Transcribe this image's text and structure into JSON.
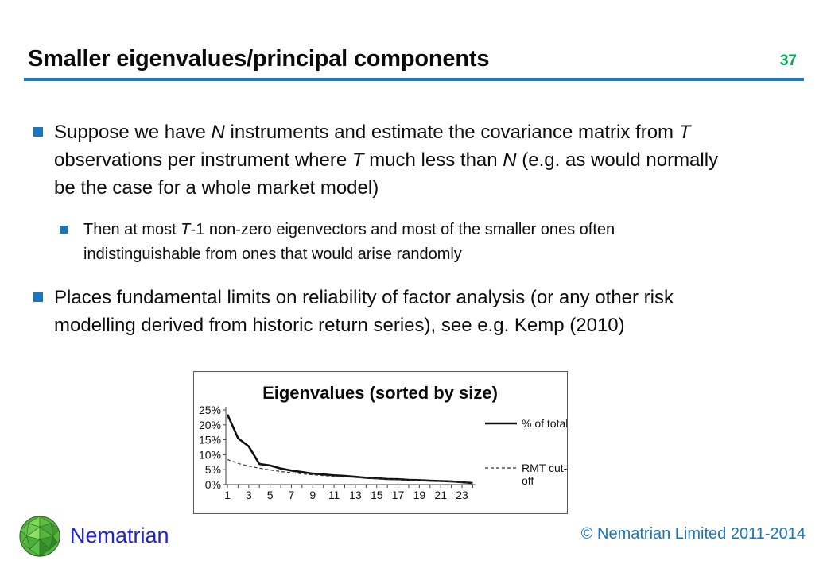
{
  "slide": {
    "title": "Smaller eigenvalues/principal components",
    "page_number": "37"
  },
  "bullets": {
    "b1": {
      "lines": [
        [
          {
            "t": "Suppose we have "
          },
          {
            "t": "N",
            "i": true
          },
          {
            "t": " instruments and estimate the covariance matrix from "
          },
          {
            "t": "T",
            "i": true
          }
        ],
        [
          {
            "t": "observations per instrument where "
          },
          {
            "t": "T",
            "i": true
          },
          {
            "t": " much less than "
          },
          {
            "t": "N",
            "i": true
          },
          {
            "t": " (e.g. as would normally"
          }
        ],
        [
          {
            "t": "be the case for a whole market model)"
          }
        ]
      ]
    },
    "sub1": {
      "lines": [
        [
          {
            "t": "Then at most "
          },
          {
            "t": "T",
            "i": true
          },
          {
            "t": "-1 non-zero eigenvectors and most of the smaller ones often"
          }
        ],
        [
          {
            "t": "indistinguishable from ones that would arise randomly"
          }
        ]
      ]
    },
    "b2": {
      "lines": [
        [
          {
            "t": "Places fundamental limits on reliability of factor analysis (or any other risk"
          }
        ],
        [
          {
            "t": "modelling derived from historic return series), see e.g. Kemp (2010)"
          }
        ]
      ]
    }
  },
  "chart_data": {
    "type": "line",
    "title": "Eigenvalues (sorted by size)",
    "x": [
      1,
      2,
      3,
      4,
      5,
      6,
      7,
      8,
      9,
      10,
      11,
      12,
      13,
      14,
      15,
      16,
      17,
      18,
      19,
      20,
      21,
      22,
      23,
      24
    ],
    "x_tick_labels": [
      "1",
      "3",
      "5",
      "7",
      "9",
      "11",
      "13",
      "15",
      "17",
      "19",
      "21",
      "23"
    ],
    "ylim": [
      0,
      25
    ],
    "y_ticks": [
      "0%",
      "5%",
      "10%",
      "15%",
      "20%",
      "25%"
    ],
    "grid": false,
    "legend_position": "right",
    "series": [
      {
        "name": "% of total",
        "style": "solid",
        "values": [
          23.5,
          15.5,
          12.8,
          6.9,
          6.4,
          5.4,
          4.7,
          4.2,
          3.7,
          3.4,
          3.1,
          2.9,
          2.6,
          2.3,
          2.1,
          1.9,
          1.8,
          1.6,
          1.5,
          1.3,
          1.2,
          1.1,
          0.8,
          0.5
        ]
      },
      {
        "name": "RMT cut-off",
        "style": "dashed",
        "values": [
          8.4,
          7.1,
          6.2,
          5.5,
          4.9,
          4.4,
          4.0,
          3.6,
          3.3,
          3.0,
          2.8,
          2.6,
          2.4,
          2.2,
          2.0,
          1.8,
          1.7,
          1.5,
          1.4,
          1.2,
          1.1,
          0.9,
          0.7,
          0.4
        ]
      }
    ]
  },
  "footer": {
    "brand": "Nematrian",
    "copyright": "© Nematrian Limited 2011-2014"
  },
  "colors": {
    "accent_blue": "#1B75BC",
    "rule_blue": "#1E7AC6",
    "page_number_green": "#00A651",
    "brand_blue": "#2323CC",
    "copyright_blue": "#1B75BC",
    "series_solid": "#111111",
    "series_dashed": "#333333"
  }
}
